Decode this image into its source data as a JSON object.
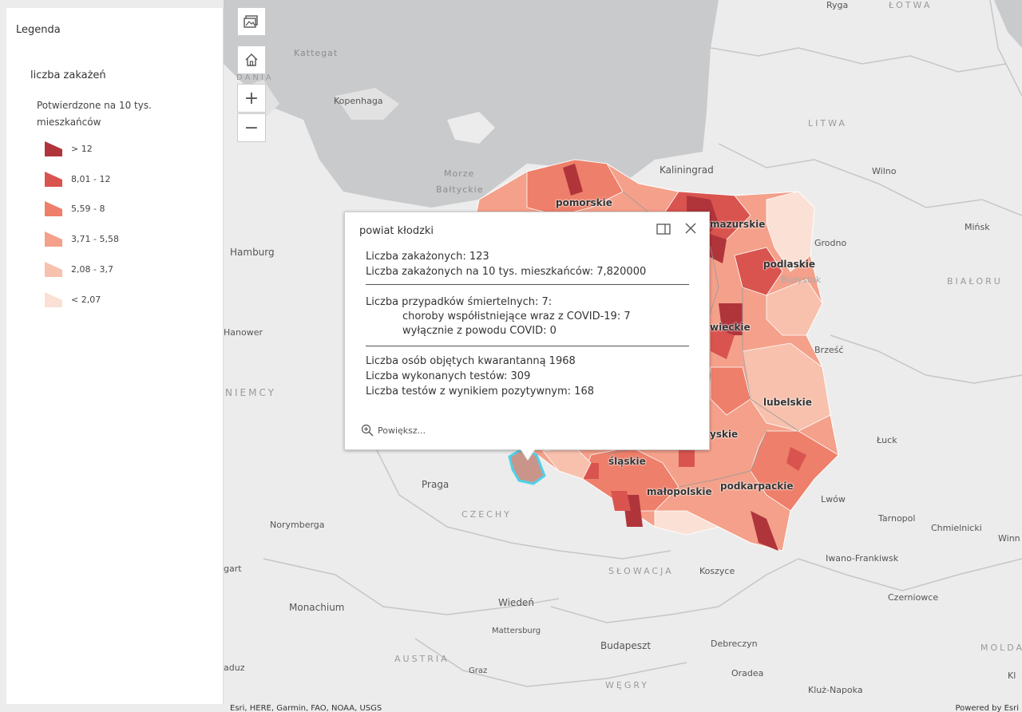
{
  "legend": {
    "title": "Legenda",
    "layer_title": "liczba zakażeń",
    "field_label": "Potwierdzone na 10 tys. mieszkańców",
    "classes": [
      {
        "label": "> 12",
        "color": "#b0353b"
      },
      {
        "label": "8,01 - 12",
        "color": "#d9544f"
      },
      {
        "label": "5,59 - 8",
        "color": "#ee7f6a"
      },
      {
        "label": "3,71 - 5,58",
        "color": "#f4a08a"
      },
      {
        "label": "2,08 - 3,7",
        "color": "#f8c1ad"
      },
      {
        "label": "< 2,07",
        "color": "#fbe0d5"
      }
    ]
  },
  "controls": {
    "basemap_icon": "basemap-icon",
    "home_icon": "home-icon",
    "zoom_in": "+",
    "zoom_out": "−"
  },
  "map_labels": {
    "countries": [
      "ŁOTWA",
      "LITWA",
      "BIAŁORU",
      "NIEMCY",
      "CZECHY",
      "SŁOWACJA",
      "AUSTRIA",
      "WĘGRY",
      "MOLDA",
      "DANIA"
    ],
    "seas": [
      "Kattegat",
      "Morze",
      "Bałtyckie"
    ],
    "regions": [
      "pomorskie",
      "mazurskie",
      "podlaskie",
      "wieckie",
      "lubelskie",
      "yskie",
      "śląskie",
      "małopolskie",
      "podkarpackie"
    ],
    "cities": [
      "Ryga",
      "Kopenhaga",
      "Kaliningrad",
      "Wilno",
      "Mińsk",
      "Hamburg",
      "Grodno",
      "Białystok",
      "Hanower",
      "Brześć",
      "Łuck",
      "Praga",
      "Lwów",
      "Norymberga",
      "Tarnopol",
      "Chmielnicki",
      "Winn",
      "gart",
      "Iwano-Frankiwsk",
      "Koszyce",
      "Monachium",
      "Wiedeń",
      "Czerniowce",
      "Mattersburg",
      "Budapeszt",
      "Debreczyn",
      "Graz",
      "Oradea",
      "Kluż-Napoka",
      "aduz",
      "Kl"
    ]
  },
  "popup": {
    "title": "powiat kłodzki",
    "lines_section1": [
      "Liczba zakażonych: 123",
      "Liczba zakażonych na 10 tys. mieszkańców: 7,820000"
    ],
    "line_deaths": "Liczba przypadków śmiertelnych: 7:",
    "line_comorb": "choroby współistniejące wraz z COVID-19: 7",
    "line_covid_only": "wyłącznie z powodu COVID: 0",
    "lines_section3": [
      "Liczba osób objętych kwarantanną 1968",
      "Liczba wykonanych testów: 309",
      "Liczba testów z wynikiem pozytywnym: 168"
    ],
    "zoom_label": "Powiększ..."
  },
  "attribution": {
    "left": "Esri, HERE, Garmin, FAO, NOAA, USGS",
    "right": "Powered by Esri"
  }
}
